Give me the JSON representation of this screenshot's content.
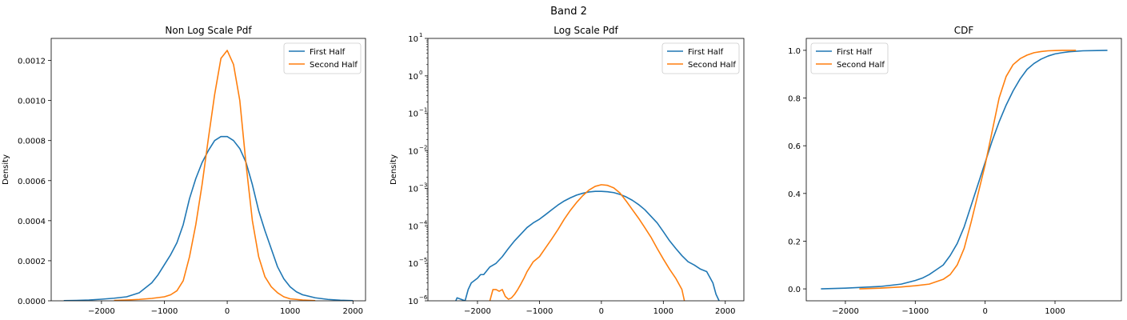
{
  "suptitle": "Band 2",
  "colors": {
    "first": "#1f77b4",
    "second": "#ff7f0e"
  },
  "chart_data": [
    {
      "type": "line",
      "title": "Non Log Scale Pdf",
      "ylabel": "Density",
      "xlabel": "",
      "xlim": [
        -2800,
        2200
      ],
      "ylim": [
        0,
        0.00131
      ],
      "yscale": "linear",
      "xticks": [
        -2000,
        -1000,
        0,
        1000,
        2000
      ],
      "xtick_labels": [
        "−2000",
        "−1000",
        "0",
        "1000",
        "2000"
      ],
      "yticks": [
        0,
        0.0002,
        0.0004,
        0.0006,
        0.0008,
        0.001,
        0.0012
      ],
      "ytick_labels": [
        "0.0000",
        "0.0002",
        "0.0004",
        "0.0006",
        "0.0008",
        "0.0010",
        "0.0012"
      ],
      "legend": {
        "position": "top-right",
        "entries": [
          "First Half",
          "Second Half"
        ]
      },
      "series": [
        {
          "name": "First Half",
          "x": [
            -2600,
            -2400,
            -2200,
            -2000,
            -1800,
            -1600,
            -1400,
            -1200,
            -1100,
            -1000,
            -900,
            -800,
            -700,
            -600,
            -500,
            -400,
            -300,
            -200,
            -100,
            0,
            100,
            200,
            300,
            400,
            500,
            600,
            700,
            800,
            900,
            1000,
            1100,
            1200,
            1400,
            1600,
            1800,
            2000
          ],
          "y": [
            1e-06,
            2e-06,
            4e-06,
            8e-06,
            1.3e-05,
            2e-05,
            4e-05,
            9e-05,
            0.00013,
            0.00018,
            0.00023,
            0.00029,
            0.00038,
            0.00051,
            0.00061,
            0.00069,
            0.00075,
            0.0008,
            0.00082,
            0.00082,
            0.0008,
            0.00076,
            0.00069,
            0.00058,
            0.00045,
            0.00035,
            0.00026,
            0.00017,
            0.00011,
            7e-05,
            4.5e-05,
            3e-05,
            1.5e-05,
            7e-06,
            3e-06,
            1e-06
          ]
        },
        {
          "name": "Second Half",
          "x": [
            -1800,
            -1600,
            -1400,
            -1200,
            -1000,
            -900,
            -800,
            -700,
            -600,
            -500,
            -400,
            -300,
            -200,
            -100,
            0,
            100,
            200,
            300,
            400,
            500,
            600,
            700,
            800,
            900,
            1000,
            1200,
            1400
          ],
          "y": [
            2e-06,
            4e-06,
            7e-06,
            1.2e-05,
            2e-05,
            3e-05,
            5e-05,
            0.0001,
            0.00022,
            0.00038,
            0.00058,
            0.00081,
            0.00103,
            0.00121,
            0.00125,
            0.00118,
            0.001,
            0.00068,
            0.0004,
            0.00022,
            0.00012,
            7e-05,
            4e-05,
            2e-05,
            1e-05,
            4e-06,
            1e-06
          ]
        }
      ]
    },
    {
      "type": "line",
      "title": "Log Scale Pdf",
      "ylabel": "Density",
      "xlabel": "",
      "xlim": [
        -2800,
        2300
      ],
      "ylim": [
        1e-06,
        10
      ],
      "yscale": "log",
      "xticks": [
        -2000,
        -1000,
        0,
        1000,
        2000
      ],
      "xtick_labels": [
        "−2000",
        "−1000",
        "0",
        "1000",
        "2000"
      ],
      "yticks": [
        -6,
        -5,
        -4,
        -3,
        -2,
        -1,
        0,
        1
      ],
      "ytick_labels": [
        "10",
        "10",
        "10",
        "10",
        "10",
        "10",
        "10",
        "10"
      ],
      "ytick_exponents": [
        "−6",
        "−5",
        "−4",
        "−3",
        "−2",
        "−1",
        "0",
        "1"
      ],
      "legend": {
        "position": "top-right",
        "entries": [
          "First Half",
          "Second Half"
        ]
      },
      "series": [
        {
          "name": "First Half",
          "x": [
            -2350,
            -2330,
            -2200,
            -2150,
            -2100,
            -2000,
            -1950,
            -1900,
            -1800,
            -1700,
            -1600,
            -1500,
            -1400,
            -1300,
            -1200,
            -1100,
            -1000,
            -900,
            -800,
            -700,
            -600,
            -500,
            -400,
            -300,
            -200,
            -100,
            0,
            100,
            200,
            300,
            400,
            500,
            600,
            700,
            800,
            900,
            1000,
            1100,
            1200,
            1300,
            1400,
            1500,
            1600,
            1700,
            1800,
            1850,
            1900
          ],
          "y": [
            1e-06,
            1.2e-06,
            1e-06,
            2e-06,
            3e-06,
            4e-06,
            5e-06,
            5e-06,
            8e-06,
            1e-05,
            1.5e-05,
            2.5e-05,
            4e-05,
            6e-05,
            9e-05,
            0.00012,
            0.00015,
            0.0002,
            0.00027,
            0.00036,
            0.00046,
            0.00056,
            0.00066,
            0.00074,
            0.0008,
            0.00083,
            0.00083,
            0.00081,
            0.00077,
            0.00069,
            0.00059,
            0.00048,
            0.00037,
            0.00027,
            0.00018,
            0.00012,
            7e-05,
            4e-05,
            2.5e-05,
            1.6e-05,
            1.1e-05,
            9e-06,
            7e-06,
            6e-06,
            3e-06,
            1.5e-06,
            1e-06
          ]
        },
        {
          "name": "Second Half",
          "x": [
            -1800,
            -1750,
            -1700,
            -1650,
            -1600,
            -1550,
            -1500,
            -1450,
            -1400,
            -1350,
            -1300,
            -1250,
            -1200,
            -1100,
            -1000,
            -900,
            -800,
            -700,
            -600,
            -500,
            -400,
            -300,
            -200,
            -100,
            0,
            100,
            200,
            300,
            400,
            500,
            600,
            700,
            800,
            900,
            1000,
            1100,
            1200,
            1300,
            1340
          ],
          "y": [
            1e-06,
            2e-06,
            2e-06,
            1.8e-06,
            2e-06,
            1.3e-06,
            1.1e-06,
            1.2e-06,
            1.5e-06,
            2e-06,
            2.8e-06,
            4e-06,
            6e-06,
            1.1e-05,
            1.5e-05,
            2.6e-05,
            4.5e-05,
            8e-05,
            0.00015,
            0.00026,
            0.00042,
            0.00064,
            0.0009,
            0.00113,
            0.00125,
            0.0012,
            0.00103,
            0.00075,
            0.00046,
            0.00027,
            0.00016,
            9e-05,
            5e-05,
            2.5e-05,
            1.3e-05,
            7e-06,
            4e-06,
            2e-06,
            1e-06
          ]
        }
      ]
    },
    {
      "type": "line",
      "title": "CDF",
      "ylabel": "",
      "xlabel": "",
      "xlim": [
        -2560,
        1950
      ],
      "ylim": [
        -0.05,
        1.05
      ],
      "yscale": "linear",
      "xticks": [
        -2000,
        -1000,
        0,
        1000
      ],
      "xtick_labels": [
        "−2000",
        "−1000",
        "0",
        "1000"
      ],
      "yticks": [
        0,
        0.2,
        0.4,
        0.6,
        0.8,
        1.0
      ],
      "ytick_labels": [
        "0.0",
        "0.2",
        "0.4",
        "0.6",
        "0.8",
        "1.0"
      ],
      "legend": {
        "position": "top-left",
        "entries": [
          "First Half",
          "Second Half"
        ]
      },
      "series": [
        {
          "name": "First Half",
          "x": [
            -2350,
            -2000,
            -1500,
            -1200,
            -1000,
            -900,
            -800,
            -700,
            -600,
            -500,
            -400,
            -300,
            -200,
            -100,
            0,
            100,
            200,
            300,
            400,
            500,
            600,
            700,
            800,
            900,
            1000,
            1100,
            1200,
            1400,
            1600,
            1750
          ],
          "y": [
            0.0,
            0.003,
            0.01,
            0.02,
            0.035,
            0.045,
            0.06,
            0.08,
            0.1,
            0.14,
            0.19,
            0.26,
            0.35,
            0.44,
            0.53,
            0.62,
            0.7,
            0.77,
            0.83,
            0.88,
            0.92,
            0.945,
            0.963,
            0.976,
            0.985,
            0.99,
            0.994,
            0.998,
            0.999,
            1.0
          ]
        },
        {
          "name": "Second Half",
          "x": [
            -1800,
            -1500,
            -1200,
            -1000,
            -800,
            -600,
            -500,
            -400,
            -300,
            -200,
            -100,
            0,
            100,
            200,
            300,
            400,
            500,
            600,
            700,
            800,
            900,
            1000,
            1100,
            1300
          ],
          "y": [
            0.0,
            0.003,
            0.008,
            0.013,
            0.02,
            0.04,
            0.06,
            0.1,
            0.17,
            0.28,
            0.4,
            0.52,
            0.66,
            0.8,
            0.89,
            0.94,
            0.965,
            0.98,
            0.99,
            0.995,
            0.998,
            0.999,
            1.0,
            1.0
          ]
        }
      ]
    }
  ]
}
